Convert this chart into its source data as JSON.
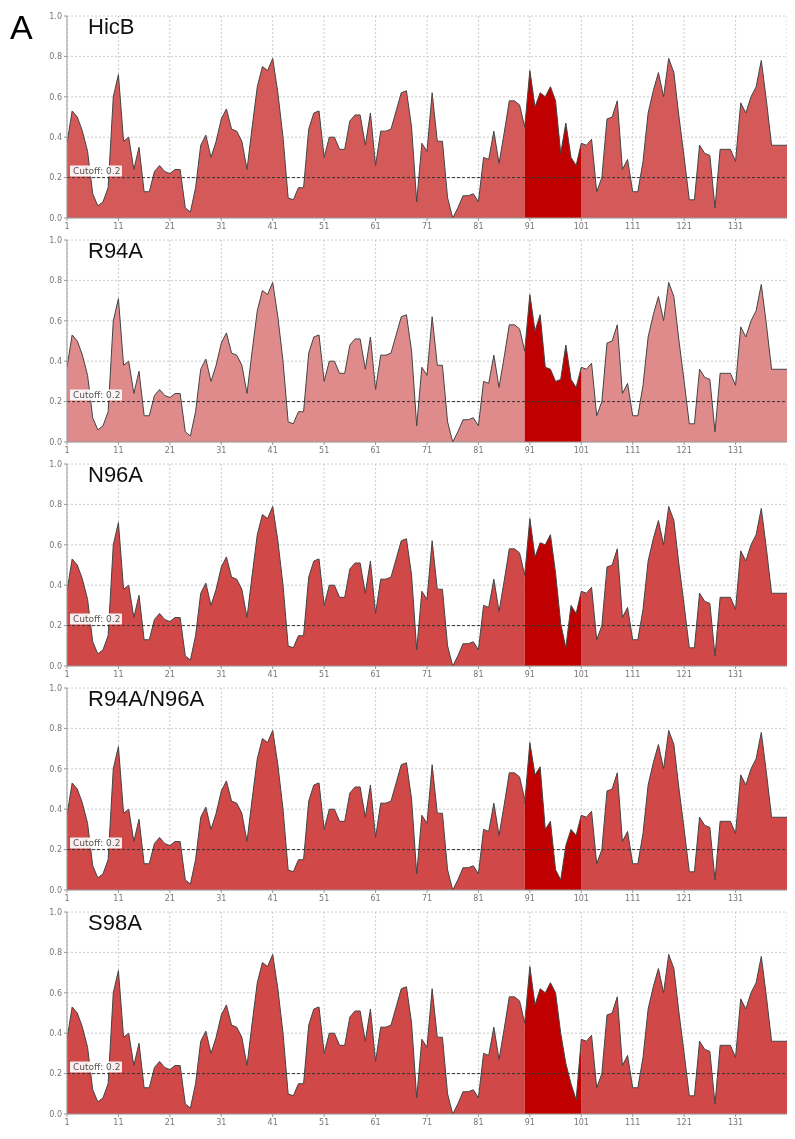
{
  "chart_data": [
    {
      "type": "area",
      "title": "HicB",
      "annotations": [
        "A"
      ],
      "xlim": [
        1,
        141
      ],
      "xticks": [
        1,
        11,
        21,
        31,
        41,
        51,
        61,
        71,
        81,
        91,
        101,
        111,
        121,
        131
      ],
      "ylim": [
        0,
        1
      ],
      "yticks": [
        {
          "value": 0,
          "label": "0.0"
        },
        {
          "value": 0.2,
          "label": "0.2"
        },
        {
          "value": 0.4,
          "label": "0.4"
        },
        {
          "value": 0.6,
          "label": "0.6"
        },
        {
          "value": 0.8,
          "label": "0.8"
        },
        {
          "value": 1,
          "label": "1.0"
        }
      ],
      "grid": true,
      "ref_lines": [
        {
          "axis": "y",
          "value": 0.2,
          "label": "Cutoff: 0.2",
          "line_style": "dashed"
        }
      ],
      "x": [
        1,
        2,
        3,
        4,
        5,
        6,
        7,
        8,
        9,
        10,
        11,
        12,
        13,
        14,
        15,
        16,
        17,
        18,
        19,
        20,
        21,
        22,
        23,
        24,
        25,
        26,
        27,
        28,
        29,
        30,
        31,
        32,
        33,
        34,
        35,
        36,
        37,
        38,
        39,
        40,
        41,
        42,
        43,
        44,
        45,
        46,
        47,
        48,
        49,
        50,
        51,
        52,
        53,
        54,
        55,
        56,
        57,
        58,
        59,
        60,
        61,
        62,
        63,
        64,
        65,
        66,
        67,
        68,
        69,
        70,
        71,
        72,
        73,
        74,
        75,
        76,
        77,
        78,
        79,
        80,
        81,
        82,
        83,
        84,
        85,
        86,
        87,
        88,
        89,
        90,
        91,
        92,
        93,
        94,
        95,
        96,
        97,
        98,
        99,
        100,
        101,
        102,
        103,
        104,
        105,
        106,
        107,
        108,
        109,
        110,
        111,
        112,
        113,
        114,
        115,
        116,
        117,
        118,
        119,
        120,
        121,
        122,
        123,
        124,
        125,
        126,
        127,
        128,
        129,
        130,
        131,
        132,
        133,
        134,
        135,
        136,
        137,
        138,
        139,
        140,
        141
      ],
      "series": [
        {
          "color": "#d45a5a",
          "values": [
            0.37,
            0.53,
            0.5,
            0.43,
            0.33,
            0.12,
            0.06,
            0.08,
            0.15,
            0.6,
            0.71,
            0.38,
            0.4,
            0.24,
            0.35,
            0.13,
            0.13,
            0.23,
            0.26,
            0.23,
            0.22,
            0.24,
            0.24,
            0.05,
            0.03,
            0.15,
            0.36,
            0.41,
            0.3,
            0.38,
            0.49,
            0.54,
            0.44,
            0.43,
            0.38,
            0.24,
            0.45,
            0.65,
            0.75,
            0.73,
            0.79,
            0.62,
            0.4,
            0.1,
            0.09,
            0.15,
            0.15,
            0.44,
            0.52,
            0.53,
            0.3,
            0.4,
            0.4,
            0.34,
            0.34,
            0.48,
            0.51,
            0.51,
            0.36,
            0.52,
            0.26,
            0.43,
            0.43,
            0.44,
            0.53,
            0.62,
            0.63,
            0.45,
            0.08,
            0.37,
            0.33,
            0.62,
            0.38,
            0.38,
            0.1,
            0.0,
            0.05,
            0.11,
            0.11,
            0.12,
            0.08,
            0.3,
            0.29,
            0.43,
            0.27,
            0.42,
            0.58,
            0.58,
            0.56,
            0.45,
            null,
            null,
            null,
            null,
            null,
            null,
            null,
            null,
            null,
            null,
            0.37,
            0.36,
            0.39,
            0.13,
            0.2,
            0.49,
            0.5,
            0.58,
            0.24,
            0.29,
            0.13,
            0.13,
            0.28,
            0.52,
            0.63,
            0.72,
            0.6,
            0.79,
            0.72,
            0.5,
            0.3,
            0.09,
            0.09,
            0.36,
            0.32,
            0.31,
            0.05,
            0.34,
            0.34,
            0.34,
            0.28,
            0.57,
            0.52,
            0.6,
            0.65,
            0.78,
            0.58,
            0.36,
            0.36,
            0.36,
            0.36
          ]
        },
        {
          "color": "#c00000",
          "x": [
            90,
            91,
            92,
            93,
            94,
            95,
            96,
            97,
            98,
            99,
            100,
            101
          ],
          "values": [
            0.45,
            0.73,
            0.55,
            0.62,
            0.6,
            0.65,
            0.58,
            0.32,
            0.47,
            0.3,
            0.26,
            0.37
          ]
        }
      ]
    },
    {
      "type": "area",
      "title": "R94A",
      "xlim": [
        1,
        141
      ],
      "xticks": [
        1,
        11,
        21,
        31,
        41,
        51,
        61,
        71,
        81,
        91,
        101,
        111,
        121,
        131
      ],
      "ylim": [
        0,
        1
      ],
      "yticks": [
        {
          "value": 0,
          "label": "0.0"
        },
        {
          "value": 0.2,
          "label": "0.2"
        },
        {
          "value": 0.4,
          "label": "0.4"
        },
        {
          "value": 0.6,
          "label": "0.6"
        },
        {
          "value": 0.8,
          "label": "0.8"
        },
        {
          "value": 1,
          "label": "1.0"
        }
      ],
      "grid": true,
      "ref_lines": [
        {
          "axis": "y",
          "value": 0.2,
          "label": "Cutoff: 0.2",
          "line_style": "dashed"
        }
      ],
      "x": [
        1,
        2,
        3,
        4,
        5,
        6,
        7,
        8,
        9,
        10,
        11,
        12,
        13,
        14,
        15,
        16,
        17,
        18,
        19,
        20,
        21,
        22,
        23,
        24,
        25,
        26,
        27,
        28,
        29,
        30,
        31,
        32,
        33,
        34,
        35,
        36,
        37,
        38,
        39,
        40,
        41,
        42,
        43,
        44,
        45,
        46,
        47,
        48,
        49,
        50,
        51,
        52,
        53,
        54,
        55,
        56,
        57,
        58,
        59,
        60,
        61,
        62,
        63,
        64,
        65,
        66,
        67,
        68,
        69,
        70,
        71,
        72,
        73,
        74,
        75,
        76,
        77,
        78,
        79,
        80,
        81,
        82,
        83,
        84,
        85,
        86,
        87,
        88,
        89,
        90,
        91,
        92,
        93,
        94,
        95,
        96,
        97,
        98,
        99,
        100,
        101,
        102,
        103,
        104,
        105,
        106,
        107,
        108,
        109,
        110,
        111,
        112,
        113,
        114,
        115,
        116,
        117,
        118,
        119,
        120,
        121,
        122,
        123,
        124,
        125,
        126,
        127,
        128,
        129,
        130,
        131,
        132,
        133,
        134,
        135,
        136,
        137,
        138,
        139,
        140,
        141
      ],
      "series": [
        {
          "color": "#e08b8b",
          "values": [
            0.37,
            0.53,
            0.5,
            0.43,
            0.33,
            0.12,
            0.06,
            0.08,
            0.15,
            0.6,
            0.71,
            0.38,
            0.4,
            0.24,
            0.35,
            0.13,
            0.13,
            0.23,
            0.26,
            0.23,
            0.22,
            0.24,
            0.24,
            0.05,
            0.03,
            0.15,
            0.36,
            0.41,
            0.3,
            0.38,
            0.49,
            0.54,
            0.44,
            0.43,
            0.38,
            0.24,
            0.45,
            0.65,
            0.75,
            0.73,
            0.79,
            0.62,
            0.4,
            0.1,
            0.09,
            0.15,
            0.15,
            0.44,
            0.52,
            0.53,
            0.3,
            0.4,
            0.4,
            0.34,
            0.34,
            0.48,
            0.51,
            0.51,
            0.36,
            0.52,
            0.26,
            0.43,
            0.43,
            0.44,
            0.53,
            0.62,
            0.63,
            0.45,
            0.08,
            0.37,
            0.33,
            0.62,
            0.38,
            0.38,
            0.1,
            0.0,
            0.05,
            0.11,
            0.11,
            0.12,
            0.08,
            0.3,
            0.29,
            0.43,
            0.27,
            0.42,
            0.58,
            0.58,
            0.56,
            0.45,
            null,
            null,
            null,
            null,
            null,
            null,
            null,
            null,
            null,
            null,
            0.37,
            0.36,
            0.39,
            0.13,
            0.2,
            0.49,
            0.5,
            0.58,
            0.24,
            0.29,
            0.13,
            0.13,
            0.28,
            0.52,
            0.63,
            0.72,
            0.6,
            0.79,
            0.72,
            0.5,
            0.3,
            0.09,
            0.09,
            0.36,
            0.32,
            0.31,
            0.05,
            0.34,
            0.34,
            0.34,
            0.28,
            0.57,
            0.52,
            0.6,
            0.65,
            0.78,
            0.58,
            0.36,
            0.36,
            0.36,
            0.36
          ]
        },
        {
          "color": "#c00000",
          "x": [
            90,
            91,
            92,
            93,
            94,
            95,
            96,
            97,
            98,
            99,
            100,
            101
          ],
          "values": [
            0.45,
            0.73,
            0.55,
            0.63,
            0.37,
            0.36,
            0.3,
            0.31,
            0.48,
            0.31,
            0.27,
            0.37
          ]
        }
      ]
    },
    {
      "type": "area",
      "title": "N96A",
      "xlim": [
        1,
        141
      ],
      "xticks": [
        1,
        11,
        21,
        31,
        41,
        51,
        61,
        71,
        81,
        91,
        101,
        111,
        121,
        131
      ],
      "ylim": [
        0,
        1
      ],
      "yticks": [
        {
          "value": 0,
          "label": "0.0"
        },
        {
          "value": 0.2,
          "label": "0.2"
        },
        {
          "value": 0.4,
          "label": "0.4"
        },
        {
          "value": 0.6,
          "label": "0.6"
        },
        {
          "value": 0.8,
          "label": "0.8"
        },
        {
          "value": 1,
          "label": "1.0"
        }
      ],
      "grid": true,
      "ref_lines": [
        {
          "axis": "y",
          "value": 0.2,
          "label": "Cutoff: 0.2",
          "line_style": "dashed"
        }
      ],
      "x": [
        1,
        2,
        3,
        4,
        5,
        6,
        7,
        8,
        9,
        10,
        11,
        12,
        13,
        14,
        15,
        16,
        17,
        18,
        19,
        20,
        21,
        22,
        23,
        24,
        25,
        26,
        27,
        28,
        29,
        30,
        31,
        32,
        33,
        34,
        35,
        36,
        37,
        38,
        39,
        40,
        41,
        42,
        43,
        44,
        45,
        46,
        47,
        48,
        49,
        50,
        51,
        52,
        53,
        54,
        55,
        56,
        57,
        58,
        59,
        60,
        61,
        62,
        63,
        64,
        65,
        66,
        67,
        68,
        69,
        70,
        71,
        72,
        73,
        74,
        75,
        76,
        77,
        78,
        79,
        80,
        81,
        82,
        83,
        84,
        85,
        86,
        87,
        88,
        89,
        90,
        91,
        92,
        93,
        94,
        95,
        96,
        97,
        98,
        99,
        100,
        101,
        102,
        103,
        104,
        105,
        106,
        107,
        108,
        109,
        110,
        111,
        112,
        113,
        114,
        115,
        116,
        117,
        118,
        119,
        120,
        121,
        122,
        123,
        124,
        125,
        126,
        127,
        128,
        129,
        130,
        131,
        132,
        133,
        134,
        135,
        136,
        137,
        138,
        139,
        140,
        141
      ],
      "series": [
        {
          "color": "#d04848",
          "values": [
            0.37,
            0.53,
            0.5,
            0.43,
            0.33,
            0.12,
            0.06,
            0.08,
            0.15,
            0.6,
            0.71,
            0.38,
            0.4,
            0.24,
            0.35,
            0.13,
            0.13,
            0.23,
            0.26,
            0.23,
            0.22,
            0.24,
            0.24,
            0.05,
            0.03,
            0.15,
            0.36,
            0.41,
            0.3,
            0.38,
            0.49,
            0.54,
            0.44,
            0.43,
            0.38,
            0.24,
            0.45,
            0.65,
            0.75,
            0.73,
            0.79,
            0.62,
            0.4,
            0.1,
            0.09,
            0.15,
            0.15,
            0.44,
            0.52,
            0.53,
            0.3,
            0.4,
            0.4,
            0.34,
            0.34,
            0.48,
            0.51,
            0.51,
            0.36,
            0.52,
            0.26,
            0.43,
            0.43,
            0.44,
            0.53,
            0.62,
            0.63,
            0.45,
            0.08,
            0.37,
            0.33,
            0.62,
            0.38,
            0.38,
            0.1,
            0.0,
            0.05,
            0.11,
            0.11,
            0.12,
            0.08,
            0.3,
            0.29,
            0.43,
            0.27,
            0.42,
            0.58,
            0.58,
            0.56,
            0.45,
            null,
            null,
            null,
            null,
            null,
            null,
            null,
            null,
            null,
            null,
            0.37,
            0.36,
            0.39,
            0.13,
            0.2,
            0.49,
            0.5,
            0.58,
            0.24,
            0.29,
            0.13,
            0.13,
            0.28,
            0.52,
            0.63,
            0.72,
            0.6,
            0.79,
            0.72,
            0.5,
            0.3,
            0.09,
            0.09,
            0.36,
            0.32,
            0.31,
            0.05,
            0.34,
            0.34,
            0.34,
            0.28,
            0.57,
            0.52,
            0.6,
            0.65,
            0.78,
            0.58,
            0.36,
            0.36,
            0.36,
            0.36
          ]
        },
        {
          "color": "#c00000",
          "x": [
            90,
            91,
            92,
            93,
            94,
            95,
            96,
            97,
            98,
            99,
            100,
            101
          ],
          "values": [
            0.45,
            0.73,
            0.54,
            0.61,
            0.6,
            0.65,
            0.46,
            0.21,
            0.09,
            0.3,
            0.26,
            0.37
          ]
        }
      ]
    },
    {
      "type": "area",
      "title": "R94A/N96A",
      "xlim": [
        1,
        141
      ],
      "xticks": [
        1,
        11,
        21,
        31,
        41,
        51,
        61,
        71,
        81,
        91,
        101,
        111,
        121,
        131
      ],
      "ylim": [
        0,
        1
      ],
      "yticks": [
        {
          "value": 0,
          "label": "0.0"
        },
        {
          "value": 0.2,
          "label": "0.2"
        },
        {
          "value": 0.4,
          "label": "0.4"
        },
        {
          "value": 0.6,
          "label": "0.6"
        },
        {
          "value": 0.8,
          "label": "0.8"
        },
        {
          "value": 1,
          "label": "1.0"
        }
      ],
      "grid": true,
      "ref_lines": [
        {
          "axis": "y",
          "value": 0.2,
          "label": "Cutoff: 0.2",
          "line_style": "dashed"
        }
      ],
      "x": [
        1,
        2,
        3,
        4,
        5,
        6,
        7,
        8,
        9,
        10,
        11,
        12,
        13,
        14,
        15,
        16,
        17,
        18,
        19,
        20,
        21,
        22,
        23,
        24,
        25,
        26,
        27,
        28,
        29,
        30,
        31,
        32,
        33,
        34,
        35,
        36,
        37,
        38,
        39,
        40,
        41,
        42,
        43,
        44,
        45,
        46,
        47,
        48,
        49,
        50,
        51,
        52,
        53,
        54,
        55,
        56,
        57,
        58,
        59,
        60,
        61,
        62,
        63,
        64,
        65,
        66,
        67,
        68,
        69,
        70,
        71,
        72,
        73,
        74,
        75,
        76,
        77,
        78,
        79,
        80,
        81,
        82,
        83,
        84,
        85,
        86,
        87,
        88,
        89,
        90,
        91,
        92,
        93,
        94,
        95,
        96,
        97,
        98,
        99,
        100,
        101,
        102,
        103,
        104,
        105,
        106,
        107,
        108,
        109,
        110,
        111,
        112,
        113,
        114,
        115,
        116,
        117,
        118,
        119,
        120,
        121,
        122,
        123,
        124,
        125,
        126,
        127,
        128,
        129,
        130,
        131,
        132,
        133,
        134,
        135,
        136,
        137,
        138,
        139,
        140,
        141
      ],
      "series": [
        {
          "color": "#d04848",
          "values": [
            0.37,
            0.53,
            0.5,
            0.43,
            0.33,
            0.12,
            0.06,
            0.08,
            0.15,
            0.6,
            0.71,
            0.38,
            0.4,
            0.24,
            0.35,
            0.13,
            0.13,
            0.23,
            0.26,
            0.23,
            0.22,
            0.24,
            0.24,
            0.05,
            0.03,
            0.15,
            0.36,
            0.41,
            0.3,
            0.38,
            0.49,
            0.54,
            0.44,
            0.43,
            0.38,
            0.24,
            0.45,
            0.65,
            0.75,
            0.73,
            0.79,
            0.62,
            0.4,
            0.1,
            0.09,
            0.15,
            0.15,
            0.44,
            0.52,
            0.53,
            0.3,
            0.4,
            0.4,
            0.34,
            0.34,
            0.48,
            0.51,
            0.51,
            0.36,
            0.52,
            0.26,
            0.43,
            0.43,
            0.44,
            0.53,
            0.62,
            0.63,
            0.45,
            0.08,
            0.37,
            0.33,
            0.62,
            0.38,
            0.38,
            0.1,
            0.0,
            0.05,
            0.11,
            0.11,
            0.12,
            0.08,
            0.3,
            0.29,
            0.43,
            0.27,
            0.42,
            0.58,
            0.58,
            0.56,
            0.45,
            null,
            null,
            null,
            null,
            null,
            null,
            null,
            null,
            null,
            null,
            0.37,
            0.36,
            0.39,
            0.13,
            0.2,
            0.49,
            0.5,
            0.58,
            0.24,
            0.29,
            0.13,
            0.13,
            0.28,
            0.52,
            0.63,
            0.72,
            0.6,
            0.79,
            0.72,
            0.5,
            0.3,
            0.09,
            0.09,
            0.36,
            0.32,
            0.31,
            0.05,
            0.34,
            0.34,
            0.34,
            0.28,
            0.57,
            0.52,
            0.6,
            0.65,
            0.78,
            0.58,
            0.36,
            0.36,
            0.36,
            0.36
          ]
        },
        {
          "color": "#c00000",
          "x": [
            90,
            91,
            92,
            93,
            94,
            95,
            96,
            97,
            98,
            99,
            100,
            101
          ],
          "values": [
            0.43,
            0.73,
            0.57,
            0.61,
            0.3,
            0.34,
            0.1,
            0.05,
            0.22,
            0.3,
            0.27,
            0.37
          ]
        }
      ]
    },
    {
      "type": "area",
      "title": "S98A",
      "xlim": [
        1,
        141
      ],
      "xticks": [
        1,
        11,
        21,
        31,
        41,
        51,
        61,
        71,
        81,
        91,
        101,
        111,
        121,
        131
      ],
      "ylim": [
        0,
        1
      ],
      "yticks": [
        {
          "value": 0,
          "label": "0.0"
        },
        {
          "value": 0.2,
          "label": "0.2"
        },
        {
          "value": 0.4,
          "label": "0.4"
        },
        {
          "value": 0.6,
          "label": "0.6"
        },
        {
          "value": 0.8,
          "label": "0.8"
        },
        {
          "value": 1,
          "label": "1.0"
        }
      ],
      "grid": true,
      "ref_lines": [
        {
          "axis": "y",
          "value": 0.2,
          "label": "Cutoff: 0.2",
          "line_style": "dashed"
        }
      ],
      "x": [
        1,
        2,
        3,
        4,
        5,
        6,
        7,
        8,
        9,
        10,
        11,
        12,
        13,
        14,
        15,
        16,
        17,
        18,
        19,
        20,
        21,
        22,
        23,
        24,
        25,
        26,
        27,
        28,
        29,
        30,
        31,
        32,
        33,
        34,
        35,
        36,
        37,
        38,
        39,
        40,
        41,
        42,
        43,
        44,
        45,
        46,
        47,
        48,
        49,
        50,
        51,
        52,
        53,
        54,
        55,
        56,
        57,
        58,
        59,
        60,
        61,
        62,
        63,
        64,
        65,
        66,
        67,
        68,
        69,
        70,
        71,
        72,
        73,
        74,
        75,
        76,
        77,
        78,
        79,
        80,
        81,
        82,
        83,
        84,
        85,
        86,
        87,
        88,
        89,
        90,
        91,
        92,
        93,
        94,
        95,
        96,
        97,
        98,
        99,
        100,
        101,
        102,
        103,
        104,
        105,
        106,
        107,
        108,
        109,
        110,
        111,
        112,
        113,
        114,
        115,
        116,
        117,
        118,
        119,
        120,
        121,
        122,
        123,
        124,
        125,
        126,
        127,
        128,
        129,
        130,
        131,
        132,
        133,
        134,
        135,
        136,
        137,
        138,
        139,
        140,
        141
      ],
      "series": [
        {
          "color": "#d04848",
          "values": [
            0.37,
            0.53,
            0.5,
            0.43,
            0.33,
            0.12,
            0.06,
            0.08,
            0.15,
            0.6,
            0.71,
            0.38,
            0.4,
            0.24,
            0.35,
            0.13,
            0.13,
            0.23,
            0.26,
            0.23,
            0.22,
            0.24,
            0.24,
            0.05,
            0.03,
            0.15,
            0.36,
            0.41,
            0.3,
            0.38,
            0.49,
            0.54,
            0.44,
            0.43,
            0.38,
            0.24,
            0.45,
            0.65,
            0.75,
            0.73,
            0.79,
            0.62,
            0.4,
            0.1,
            0.09,
            0.15,
            0.15,
            0.44,
            0.52,
            0.53,
            0.3,
            0.4,
            0.4,
            0.34,
            0.34,
            0.48,
            0.51,
            0.51,
            0.36,
            0.52,
            0.26,
            0.43,
            0.43,
            0.44,
            0.53,
            0.62,
            0.63,
            0.45,
            0.08,
            0.37,
            0.33,
            0.62,
            0.38,
            0.38,
            0.1,
            0.0,
            0.05,
            0.11,
            0.11,
            0.12,
            0.08,
            0.3,
            0.29,
            0.43,
            0.27,
            0.42,
            0.58,
            0.58,
            0.56,
            0.45,
            null,
            null,
            null,
            null,
            null,
            null,
            null,
            null,
            null,
            null,
            0.37,
            0.36,
            0.39,
            0.13,
            0.2,
            0.49,
            0.5,
            0.58,
            0.24,
            0.29,
            0.13,
            0.13,
            0.28,
            0.52,
            0.63,
            0.72,
            0.6,
            0.79,
            0.72,
            0.5,
            0.3,
            0.09,
            0.09,
            0.36,
            0.32,
            0.31,
            0.05,
            0.34,
            0.34,
            0.34,
            0.28,
            0.57,
            0.52,
            0.6,
            0.65,
            0.78,
            0.58,
            0.36,
            0.36,
            0.36,
            0.36
          ]
        },
        {
          "color": "#c00000",
          "x": [
            90,
            91,
            92,
            93,
            94,
            95,
            96,
            97,
            98,
            99,
            100,
            101
          ],
          "values": [
            0.45,
            0.73,
            0.54,
            0.62,
            0.6,
            0.65,
            0.6,
            0.4,
            0.25,
            0.15,
            0.07,
            0.37
          ]
        }
      ]
    }
  ]
}
